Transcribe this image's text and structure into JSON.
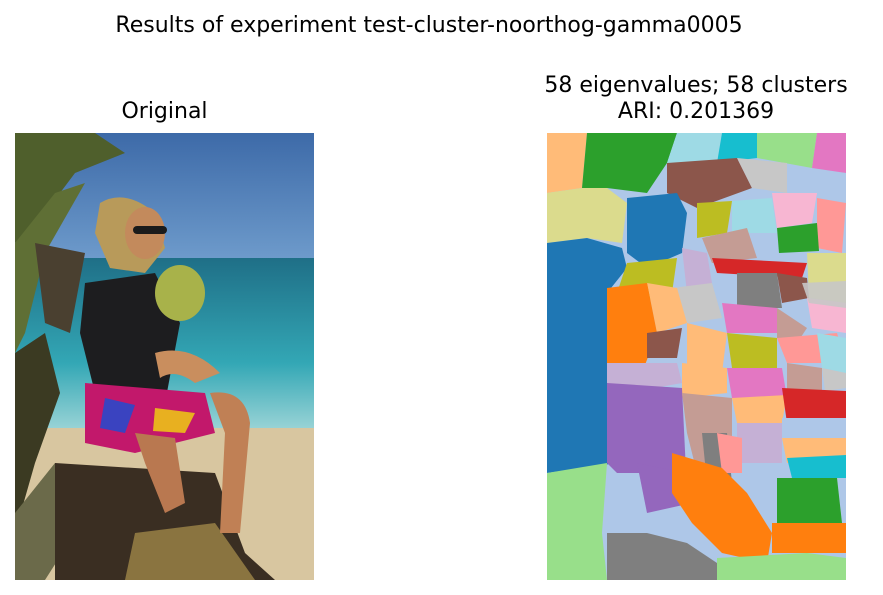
{
  "figure": {
    "suptitle": "Results of experiment test-cluster-noorthog-gamma0005",
    "original_title": "Original",
    "result_title_line1": "58 eigenvalues; 58 clusters",
    "result_title_line2": "ARI: 0.201369"
  },
  "colors": {
    "sky": "#4a78b8",
    "sea": "#2f9fb0",
    "sand": "#d9c7a3",
    "skin": "#c98e5e",
    "palm": "#5c6b3a",
    "tab_blue": "#1f77b4",
    "tab_orange": "#ff7f0e",
    "tab_green": "#2ca02c",
    "tab_red": "#d62728",
    "tab_purple": "#9467bd",
    "tab_brown": "#8c564b",
    "tab_pink": "#e377c2",
    "tab_gray": "#7f7f7f",
    "tab_olive": "#bcbd22",
    "tab_cyan": "#17becf"
  }
}
